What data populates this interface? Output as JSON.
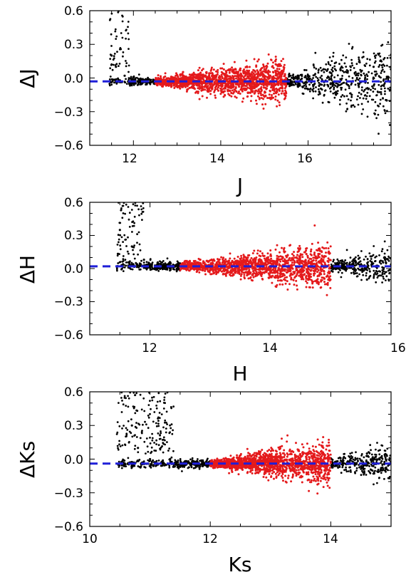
{
  "chart_data": [
    {
      "type": "scatter",
      "xlabel": "J",
      "ylabel": "ΔJ",
      "xlim": [
        11.0,
        17.9
      ],
      "ylim": [
        -0.6,
        0.6
      ],
      "xticks": [
        12,
        14,
        16
      ],
      "xtick_labels": [
        "12",
        "14",
        "16"
      ],
      "yticks": [
        0.6,
        0.3,
        0.0,
        -0.3,
        -0.6
      ],
      "ytick_labels": [
        "0.6",
        "0.3",
        "0.0",
        "−0.3",
        "−0.6"
      ],
      "offset_line": {
        "value": -0.03,
        "color": "#1f1fd8",
        "style": "dashed"
      },
      "selected_range": [
        12.5,
        15.5
      ],
      "series": [
        {
          "color": "#000000",
          "points": [
            [
              11.5,
              0.2
            ],
            [
              11.6,
              0.1
            ],
            [
              11.8,
              0.02
            ],
            [
              12.0,
              -0.02
            ],
            [
              12.3,
              -0.04
            ],
            [
              15.6,
              0.02
            ],
            [
              16.0,
              -0.1
            ],
            [
              16.5,
              0.05
            ],
            [
              17.0,
              -0.15
            ],
            [
              17.5,
              0.1
            ],
            [
              17.8,
              -0.2
            ]
          ]
        },
        {
          "color": "#e41a1c",
          "points": [
            [
              12.6,
              -0.03
            ],
            [
              13.0,
              -0.05
            ],
            [
              13.5,
              -0.02
            ],
            [
              14.0,
              -0.04
            ],
            [
              14.5,
              -0.03
            ],
            [
              15.0,
              -0.05
            ],
            [
              15.4,
              -0.02
            ]
          ]
        }
      ]
    },
    {
      "type": "scatter",
      "xlabel": "H",
      "ylabel": "ΔH",
      "xlim": [
        11.0,
        16.0
      ],
      "ylim": [
        -0.6,
        0.6
      ],
      "xticks": [
        12,
        14,
        16
      ],
      "xtick_labels": [
        "12",
        "14",
        "16"
      ],
      "yticks": [
        0.6,
        0.3,
        0.0,
        -0.3,
        -0.6
      ],
      "ytick_labels": [
        "0.6",
        "0.3",
        "0.0",
        "−0.3",
        "−0.6"
      ],
      "offset_line": {
        "value": 0.02,
        "color": "#1f1fd8",
        "style": "dashed"
      },
      "selected_range": [
        12.5,
        15.0
      ],
      "series": [
        {
          "color": "#000000",
          "points": [
            [
              11.5,
              0.35
            ],
            [
              11.7,
              0.2
            ],
            [
              11.9,
              0.08
            ],
            [
              12.2,
              0.03
            ],
            [
              15.2,
              0.0
            ],
            [
              15.6,
              -0.1
            ],
            [
              15.9,
              0.1
            ]
          ]
        },
        {
          "color": "#e41a1c",
          "points": [
            [
              12.6,
              0.02
            ],
            [
              13.0,
              0.01
            ],
            [
              13.5,
              0.03
            ],
            [
              14.0,
              0.0
            ],
            [
              14.5,
              0.02
            ],
            [
              14.9,
              0.01
            ]
          ]
        }
      ]
    },
    {
      "type": "scatter",
      "xlabel": "Ks",
      "ylabel": "ΔKs",
      "xlim": [
        10.0,
        15.0
      ],
      "ylim": [
        -0.6,
        0.6
      ],
      "xticks": [
        10,
        12,
        14
      ],
      "xtick_labels": [
        "10",
        "12",
        "14"
      ],
      "yticks": [
        0.6,
        0.3,
        0.0,
        -0.3,
        -0.6
      ],
      "ytick_labels": [
        "0.6",
        "0.3",
        "0.0",
        "−0.3",
        "−0.6"
      ],
      "offset_line": {
        "value": -0.04,
        "color": "#1f1fd8",
        "style": "dashed"
      },
      "selected_range": [
        12.0,
        14.0
      ],
      "series": [
        {
          "color": "#000000",
          "points": [
            [
              10.7,
              0.3
            ],
            [
              10.8,
              0.1
            ],
            [
              11.0,
              0.0
            ],
            [
              11.5,
              -0.05
            ],
            [
              14.2,
              -0.03
            ],
            [
              14.6,
              0.05
            ],
            [
              14.9,
              -0.1
            ]
          ]
        },
        {
          "color": "#e41a1c",
          "points": [
            [
              12.1,
              -0.04
            ],
            [
              12.5,
              -0.02
            ],
            [
              13.0,
              -0.05
            ],
            [
              13.5,
              -0.03
            ],
            [
              13.9,
              -0.04
            ]
          ]
        }
      ]
    }
  ]
}
